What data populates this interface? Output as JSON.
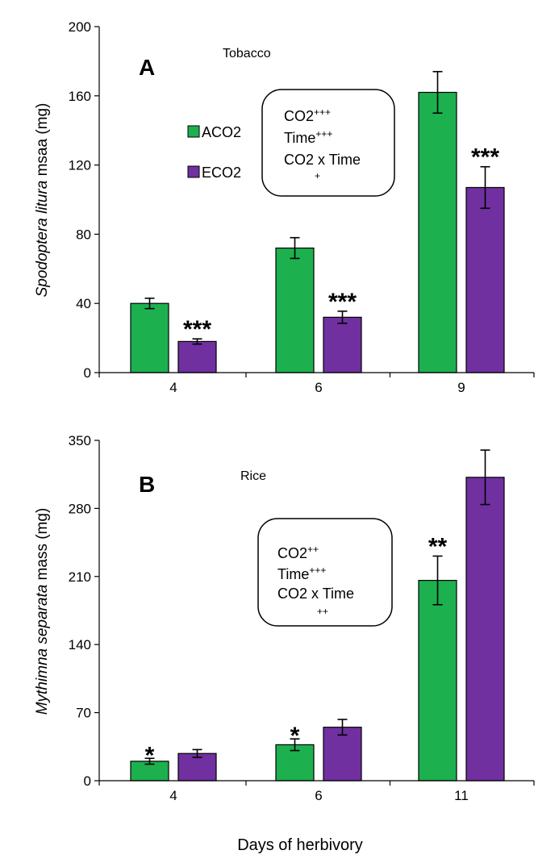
{
  "colors": {
    "ACO2": "#1db04f",
    "ECO2": "#7030a0"
  },
  "xlabel": "Days of herbivory",
  "legend": [
    {
      "name": "ACO2",
      "color": "#1db04f"
    },
    {
      "name": "ECO2",
      "color": "#7030a0"
    }
  ],
  "chart_data": [
    {
      "type": "bar",
      "panel": "A",
      "title": "Tobacco",
      "ylabel_italic": "Spodoptera litura",
      "ylabel_rest": " msaa (mg)",
      "categories": [
        "4",
        "6",
        "9"
      ],
      "ylim": [
        0,
        200
      ],
      "yticks": [
        "0",
        "40",
        "80",
        "120",
        "160",
        "200"
      ],
      "series": [
        {
          "name": "ACO2",
          "values": [
            40,
            72,
            162
          ],
          "errors": [
            3,
            6,
            12
          ]
        },
        {
          "name": "ECO2",
          "values": [
            18,
            32,
            107
          ],
          "errors": [
            1.5,
            3.5,
            12
          ]
        }
      ],
      "significance": [
        "***",
        "***",
        "***"
      ],
      "significance_on": "ECO2",
      "stats": {
        "co2": "CO2",
        "co2_sup": "+++",
        "time": "Time",
        "time_sup": "+++",
        "inter": "CO2 x Time",
        "inter_sub": "+"
      },
      "legend_position": "upper-left",
      "grid": false
    },
    {
      "type": "bar",
      "panel": "B",
      "title": "Rice",
      "ylabel_italic": "Mythimna separata",
      "ylabel_rest": " mass (mg)",
      "categories": [
        "4",
        "6",
        "11"
      ],
      "ylim": [
        0,
        350
      ],
      "yticks": [
        "0",
        "70",
        "140",
        "210",
        "280",
        "350"
      ],
      "series": [
        {
          "name": "ACO2",
          "values": [
            20,
            37,
            206
          ],
          "errors": [
            3,
            6,
            25
          ]
        },
        {
          "name": "ECO2",
          "values": [
            28,
            55,
            312
          ],
          "errors": [
            4,
            8,
            28
          ]
        }
      ],
      "significance": [
        "*",
        "*",
        "**"
      ],
      "significance_on": "ACO2",
      "stats": {
        "co2": "CO2",
        "co2_sup": "++",
        "time": "Time",
        "time_sup": "+++",
        "inter": "CO2 x Time",
        "inter_sub": "++"
      },
      "grid": false
    }
  ]
}
